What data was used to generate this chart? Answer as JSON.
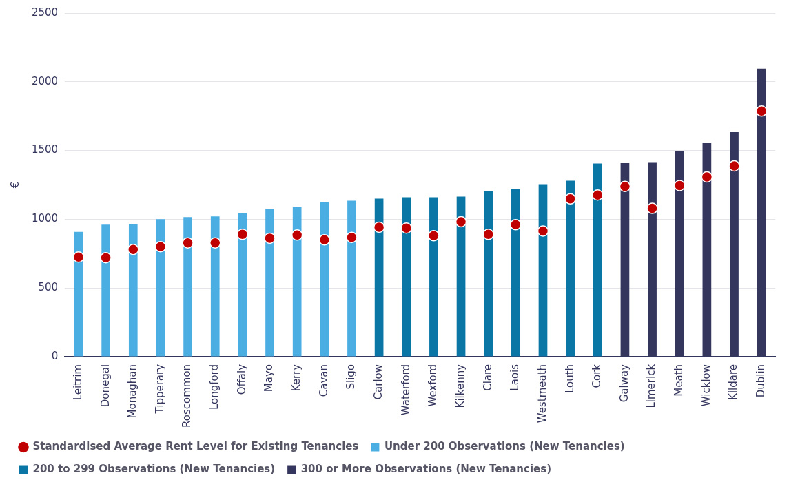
{
  "chart_data": {
    "type": "bar",
    "categories": [
      "Leitrim",
      "Donegal",
      "Monaghan",
      "Tipperary",
      "Roscommon",
      "Longford",
      "Offaly",
      "Mayo",
      "Kerry",
      "Cavan",
      "Sligo",
      "Carlow",
      "Waterford",
      "Wexford",
      "Kilkenny",
      "Clare",
      "Laois",
      "Westmeath",
      "Louth",
      "Cork",
      "Galway",
      "Limerick",
      "Meath",
      "Wicklow",
      "Kildare",
      "Dublin"
    ],
    "ylabel": "€",
    "ylim": [
      0,
      2500
    ],
    "yticks": [
      0,
      500,
      1000,
      1500,
      2000,
      2500
    ],
    "grid": "y",
    "legend": "bottom",
    "marker": "circle",
    "series": [
      {
        "name": "Under 200 Observations (New Tenancies)",
        "color": "#4aaee3",
        "values": [
          908,
          960,
          965,
          1000,
          1015,
          1020,
          1045,
          1075,
          1090,
          1125,
          1135,
          null,
          null,
          null,
          null,
          null,
          null,
          null,
          null,
          null,
          null,
          null,
          null,
          null,
          null,
          null
        ]
      },
      {
        "name": "200 to 299 Observations (New Tenancies)",
        "color": "#0a76a6",
        "values": [
          null,
          null,
          null,
          null,
          null,
          null,
          null,
          null,
          null,
          null,
          null,
          1150,
          1160,
          1160,
          1165,
          1205,
          1220,
          1255,
          1280,
          1405,
          null,
          null,
          null,
          null,
          null,
          null
        ]
      },
      {
        "name": "300 or More Observations (New Tenancies)",
        "color": "#34365e",
        "values": [
          null,
          null,
          null,
          null,
          null,
          null,
          null,
          null,
          null,
          null,
          null,
          null,
          null,
          null,
          null,
          null,
          null,
          null,
          null,
          null,
          1410,
          1415,
          1495,
          1555,
          1635,
          2095
        ]
      },
      {
        "name": "Standardised Average Rent Level for Existing Tenancies",
        "type": "scatter",
        "color": "#c00000",
        "x": [
          "Leitrim",
          "Donegal",
          "Monaghan",
          "Tipperary",
          "Roscommon",
          "Longford",
          "Offaly",
          "Mayo",
          "Kerry",
          "Cavan",
          "Sligo",
          "Carlow",
          "Waterford",
          "Wexford",
          "Kilkenny",
          "Clare",
          "Laois",
          "Westmeath",
          "Louth",
          "Cork",
          "Galway",
          "Limerick",
          "Meath",
          "Wicklow",
          "Kildare",
          "Dublin"
        ],
        "values": [
          725,
          720,
          780,
          800,
          828,
          828,
          890,
          862,
          885,
          850,
          868,
          942,
          936,
          880,
          982,
          890,
          960,
          914,
          1148,
          1176,
          1239,
          1079,
          1245,
          1308,
          1388,
          1787
        ]
      }
    ]
  }
}
